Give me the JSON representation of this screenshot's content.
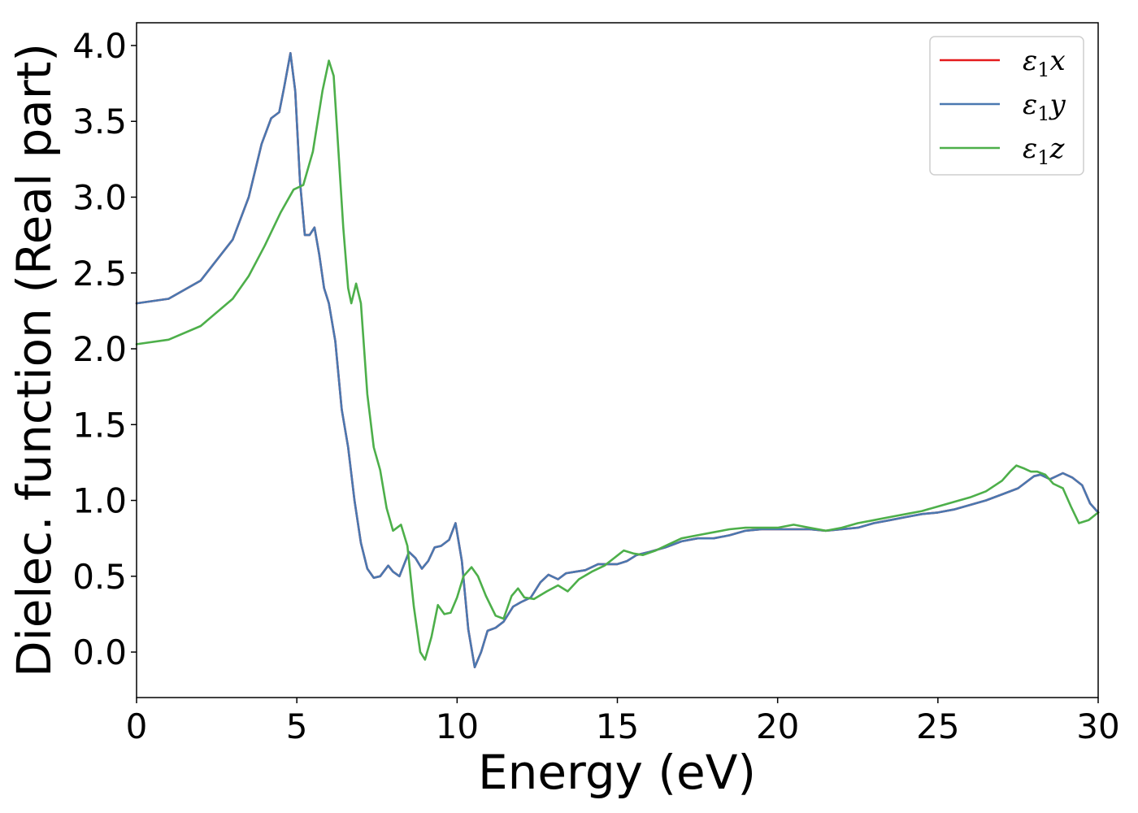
{
  "chart_data": {
    "type": "line",
    "title": "",
    "xlabel": "Energy (eV)",
    "ylabel": "Dielec. function (Real part)",
    "xlim": [
      0,
      30
    ],
    "ylim": [
      -0.3,
      4.15
    ],
    "xticks": [
      0,
      5,
      10,
      15,
      20,
      25,
      30
    ],
    "xtick_labels": [
      "0",
      "5",
      "10",
      "15",
      "20",
      "25",
      "30"
    ],
    "yticks": [
      0.0,
      0.5,
      1.0,
      1.5,
      2.0,
      2.5,
      3.0,
      3.5,
      4.0
    ],
    "ytick_labels": [
      "0.0",
      "0.5",
      "1.0",
      "1.5",
      "2.0",
      "2.5",
      "3.0",
      "3.5",
      "4.0"
    ],
    "grid": false,
    "legend_position": "top-right",
    "series": [
      {
        "name": "ε1x",
        "legend_base": "ε",
        "legend_sub": "1",
        "legend_tail": "x",
        "color": "#e41a1c",
        "points": [
          [
            0,
            2.3
          ],
          [
            1,
            2.33
          ],
          [
            2,
            2.45
          ],
          [
            3,
            2.72
          ],
          [
            3.5,
            3.0
          ],
          [
            3.9,
            3.35
          ],
          [
            4.2,
            3.52
          ],
          [
            4.45,
            3.56
          ],
          [
            4.6,
            3.72
          ],
          [
            4.8,
            3.95
          ],
          [
            4.95,
            3.7
          ],
          [
            5.1,
            3.1
          ],
          [
            5.25,
            2.75
          ],
          [
            5.4,
            2.75
          ],
          [
            5.55,
            2.8
          ],
          [
            5.7,
            2.62
          ],
          [
            5.85,
            2.4
          ],
          [
            6.0,
            2.3
          ],
          [
            6.2,
            2.05
          ],
          [
            6.4,
            1.6
          ],
          [
            6.6,
            1.35
          ],
          [
            6.8,
            1.0
          ],
          [
            7.0,
            0.72
          ],
          [
            7.2,
            0.55
          ],
          [
            7.4,
            0.49
          ],
          [
            7.6,
            0.5
          ],
          [
            7.85,
            0.57
          ],
          [
            8.0,
            0.53
          ],
          [
            8.2,
            0.5
          ],
          [
            8.5,
            0.66
          ],
          [
            8.7,
            0.62
          ],
          [
            8.9,
            0.55
          ],
          [
            9.1,
            0.6
          ],
          [
            9.3,
            0.69
          ],
          [
            9.5,
            0.7
          ],
          [
            9.75,
            0.74
          ],
          [
            9.95,
            0.85
          ],
          [
            10.15,
            0.6
          ],
          [
            10.35,
            0.15
          ],
          [
            10.55,
            -0.1
          ],
          [
            10.75,
            0.0
          ],
          [
            10.95,
            0.14
          ],
          [
            11.2,
            0.16
          ],
          [
            11.45,
            0.2
          ],
          [
            11.75,
            0.3
          ],
          [
            12.0,
            0.33
          ],
          [
            12.3,
            0.36
          ],
          [
            12.6,
            0.46
          ],
          [
            12.85,
            0.51
          ],
          [
            13.15,
            0.48
          ],
          [
            13.4,
            0.52
          ],
          [
            13.7,
            0.53
          ],
          [
            14.0,
            0.54
          ],
          [
            14.4,
            0.58
          ],
          [
            14.7,
            0.58
          ],
          [
            15.0,
            0.58
          ],
          [
            15.3,
            0.6
          ],
          [
            15.6,
            0.64
          ],
          [
            16.0,
            0.66
          ],
          [
            16.5,
            0.69
          ],
          [
            17.0,
            0.73
          ],
          [
            17.5,
            0.75
          ],
          [
            18.0,
            0.75
          ],
          [
            18.5,
            0.77
          ],
          [
            19.0,
            0.8
          ],
          [
            19.5,
            0.81
          ],
          [
            20.0,
            0.81
          ],
          [
            20.5,
            0.81
          ],
          [
            21.0,
            0.81
          ],
          [
            21.5,
            0.8
          ],
          [
            22.0,
            0.81
          ],
          [
            22.5,
            0.82
          ],
          [
            23.0,
            0.85
          ],
          [
            23.5,
            0.87
          ],
          [
            24.0,
            0.89
          ],
          [
            24.5,
            0.91
          ],
          [
            25.0,
            0.92
          ],
          [
            25.5,
            0.94
          ],
          [
            26.0,
            0.97
          ],
          [
            26.5,
            1.0
          ],
          [
            27.0,
            1.04
          ],
          [
            27.5,
            1.08
          ],
          [
            28.0,
            1.16
          ],
          [
            28.2,
            1.17
          ],
          [
            28.5,
            1.14
          ],
          [
            28.9,
            1.18
          ],
          [
            29.2,
            1.15
          ],
          [
            29.5,
            1.1
          ],
          [
            29.75,
            0.98
          ],
          [
            30.0,
            0.92
          ]
        ]
      },
      {
        "name": "ε1y",
        "legend_base": "ε",
        "legend_sub": "1",
        "legend_tail": "y",
        "color": "#4a78b0",
        "points": [
          [
            0,
            2.3
          ],
          [
            1,
            2.33
          ],
          [
            2,
            2.45
          ],
          [
            3,
            2.72
          ],
          [
            3.5,
            3.0
          ],
          [
            3.9,
            3.35
          ],
          [
            4.2,
            3.52
          ],
          [
            4.45,
            3.56
          ],
          [
            4.6,
            3.72
          ],
          [
            4.8,
            3.95
          ],
          [
            4.95,
            3.7
          ],
          [
            5.1,
            3.1
          ],
          [
            5.25,
            2.75
          ],
          [
            5.4,
            2.75
          ],
          [
            5.55,
            2.8
          ],
          [
            5.7,
            2.62
          ],
          [
            5.85,
            2.4
          ],
          [
            6.0,
            2.3
          ],
          [
            6.2,
            2.05
          ],
          [
            6.4,
            1.6
          ],
          [
            6.6,
            1.35
          ],
          [
            6.8,
            1.0
          ],
          [
            7.0,
            0.72
          ],
          [
            7.2,
            0.55
          ],
          [
            7.4,
            0.49
          ],
          [
            7.6,
            0.5
          ],
          [
            7.85,
            0.57
          ],
          [
            8.0,
            0.53
          ],
          [
            8.2,
            0.5
          ],
          [
            8.5,
            0.66
          ],
          [
            8.7,
            0.62
          ],
          [
            8.9,
            0.55
          ],
          [
            9.1,
            0.6
          ],
          [
            9.3,
            0.69
          ],
          [
            9.5,
            0.7
          ],
          [
            9.75,
            0.74
          ],
          [
            9.95,
            0.85
          ],
          [
            10.15,
            0.6
          ],
          [
            10.35,
            0.15
          ],
          [
            10.55,
            -0.1
          ],
          [
            10.75,
            0.0
          ],
          [
            10.95,
            0.14
          ],
          [
            11.2,
            0.16
          ],
          [
            11.45,
            0.2
          ],
          [
            11.75,
            0.3
          ],
          [
            12.0,
            0.33
          ],
          [
            12.3,
            0.36
          ],
          [
            12.6,
            0.46
          ],
          [
            12.85,
            0.51
          ],
          [
            13.15,
            0.48
          ],
          [
            13.4,
            0.52
          ],
          [
            13.7,
            0.53
          ],
          [
            14.0,
            0.54
          ],
          [
            14.4,
            0.58
          ],
          [
            14.7,
            0.58
          ],
          [
            15.0,
            0.58
          ],
          [
            15.3,
            0.6
          ],
          [
            15.6,
            0.64
          ],
          [
            16.0,
            0.66
          ],
          [
            16.5,
            0.69
          ],
          [
            17.0,
            0.73
          ],
          [
            17.5,
            0.75
          ],
          [
            18.0,
            0.75
          ],
          [
            18.5,
            0.77
          ],
          [
            19.0,
            0.8
          ],
          [
            19.5,
            0.81
          ],
          [
            20.0,
            0.81
          ],
          [
            20.5,
            0.81
          ],
          [
            21.0,
            0.81
          ],
          [
            21.5,
            0.8
          ],
          [
            22.0,
            0.81
          ],
          [
            22.5,
            0.82
          ],
          [
            23.0,
            0.85
          ],
          [
            23.5,
            0.87
          ],
          [
            24.0,
            0.89
          ],
          [
            24.5,
            0.91
          ],
          [
            25.0,
            0.92
          ],
          [
            25.5,
            0.94
          ],
          [
            26.0,
            0.97
          ],
          [
            26.5,
            1.0
          ],
          [
            27.0,
            1.04
          ],
          [
            27.5,
            1.08
          ],
          [
            28.0,
            1.16
          ],
          [
            28.2,
            1.17
          ],
          [
            28.5,
            1.14
          ],
          [
            28.9,
            1.18
          ],
          [
            29.2,
            1.15
          ],
          [
            29.5,
            1.1
          ],
          [
            29.75,
            0.98
          ],
          [
            30.0,
            0.92
          ]
        ]
      },
      {
        "name": "ε1z",
        "legend_base": "ε",
        "legend_sub": "1",
        "legend_tail": "z",
        "color": "#4daf4a",
        "points": [
          [
            0,
            2.03
          ],
          [
            1,
            2.06
          ],
          [
            2,
            2.15
          ],
          [
            3,
            2.33
          ],
          [
            3.5,
            2.48
          ],
          [
            4.0,
            2.68
          ],
          [
            4.5,
            2.9
          ],
          [
            4.9,
            3.05
          ],
          [
            5.2,
            3.08
          ],
          [
            5.5,
            3.3
          ],
          [
            5.8,
            3.7
          ],
          [
            6.0,
            3.9
          ],
          [
            6.15,
            3.8
          ],
          [
            6.3,
            3.3
          ],
          [
            6.45,
            2.8
          ],
          [
            6.6,
            2.4
          ],
          [
            6.7,
            2.3
          ],
          [
            6.85,
            2.43
          ],
          [
            7.0,
            2.3
          ],
          [
            7.2,
            1.7
          ],
          [
            7.4,
            1.35
          ],
          [
            7.6,
            1.2
          ],
          [
            7.8,
            0.95
          ],
          [
            8.0,
            0.8
          ],
          [
            8.25,
            0.84
          ],
          [
            8.45,
            0.7
          ],
          [
            8.65,
            0.3
          ],
          [
            8.85,
            0.0
          ],
          [
            9.0,
            -0.05
          ],
          [
            9.2,
            0.1
          ],
          [
            9.4,
            0.31
          ],
          [
            9.6,
            0.25
          ],
          [
            9.8,
            0.26
          ],
          [
            10.0,
            0.36
          ],
          [
            10.2,
            0.5
          ],
          [
            10.45,
            0.56
          ],
          [
            10.65,
            0.5
          ],
          [
            10.9,
            0.37
          ],
          [
            11.2,
            0.24
          ],
          [
            11.45,
            0.22
          ],
          [
            11.7,
            0.37
          ],
          [
            11.9,
            0.42
          ],
          [
            12.1,
            0.36
          ],
          [
            12.4,
            0.35
          ],
          [
            12.8,
            0.4
          ],
          [
            13.15,
            0.44
          ],
          [
            13.45,
            0.4
          ],
          [
            13.8,
            0.48
          ],
          [
            14.2,
            0.53
          ],
          [
            14.6,
            0.57
          ],
          [
            14.9,
            0.62
          ],
          [
            15.2,
            0.67
          ],
          [
            15.5,
            0.65
          ],
          [
            15.8,
            0.64
          ],
          [
            16.2,
            0.67
          ],
          [
            16.6,
            0.71
          ],
          [
            17.0,
            0.75
          ],
          [
            17.5,
            0.77
          ],
          [
            18.0,
            0.79
          ],
          [
            18.5,
            0.81
          ],
          [
            19.0,
            0.82
          ],
          [
            19.5,
            0.82
          ],
          [
            20.0,
            0.82
          ],
          [
            20.5,
            0.84
          ],
          [
            21.0,
            0.82
          ],
          [
            21.5,
            0.8
          ],
          [
            22.0,
            0.82
          ],
          [
            22.5,
            0.85
          ],
          [
            23.0,
            0.87
          ],
          [
            23.5,
            0.89
          ],
          [
            24.0,
            0.91
          ],
          [
            24.5,
            0.93
          ],
          [
            25.0,
            0.96
          ],
          [
            25.5,
            0.99
          ],
          [
            26.0,
            1.02
          ],
          [
            26.5,
            1.06
          ],
          [
            27.0,
            1.13
          ],
          [
            27.25,
            1.19
          ],
          [
            27.45,
            1.23
          ],
          [
            27.7,
            1.21
          ],
          [
            27.9,
            1.19
          ],
          [
            28.1,
            1.19
          ],
          [
            28.35,
            1.17
          ],
          [
            28.6,
            1.11
          ],
          [
            28.9,
            1.08
          ],
          [
            29.15,
            0.96
          ],
          [
            29.4,
            0.85
          ],
          [
            29.7,
            0.87
          ],
          [
            30.0,
            0.92
          ]
        ]
      }
    ]
  }
}
